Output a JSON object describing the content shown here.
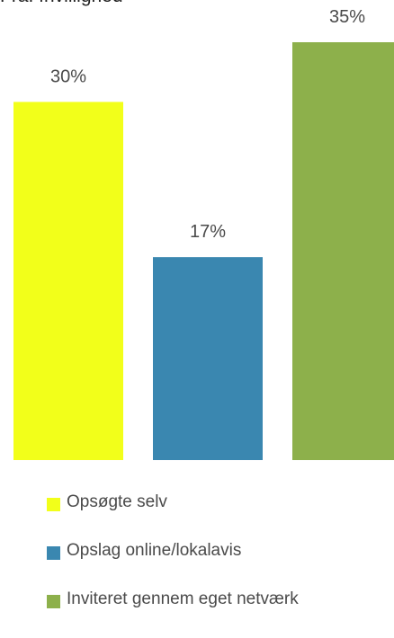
{
  "chart_data": {
    "type": "bar",
    "title": "Fra: frivillighed",
    "categories": [
      "Opsøgte selv",
      "Opslag online/lokalavis",
      "Inviteret gennem eget netværk"
    ],
    "values": [
      30,
      17,
      35
    ],
    "value_labels": [
      "30%",
      "17%",
      "35%"
    ],
    "colors": [
      "#f2ff1a",
      "#3a87b0",
      "#8db04b"
    ],
    "legend": [
      "Opsøgte selv",
      "Opslag online/lokalavis",
      "Inviteret gennem eget netværk"
    ],
    "legend_position": "bottom",
    "grid": false,
    "ylim": [
      0,
      35
    ]
  }
}
